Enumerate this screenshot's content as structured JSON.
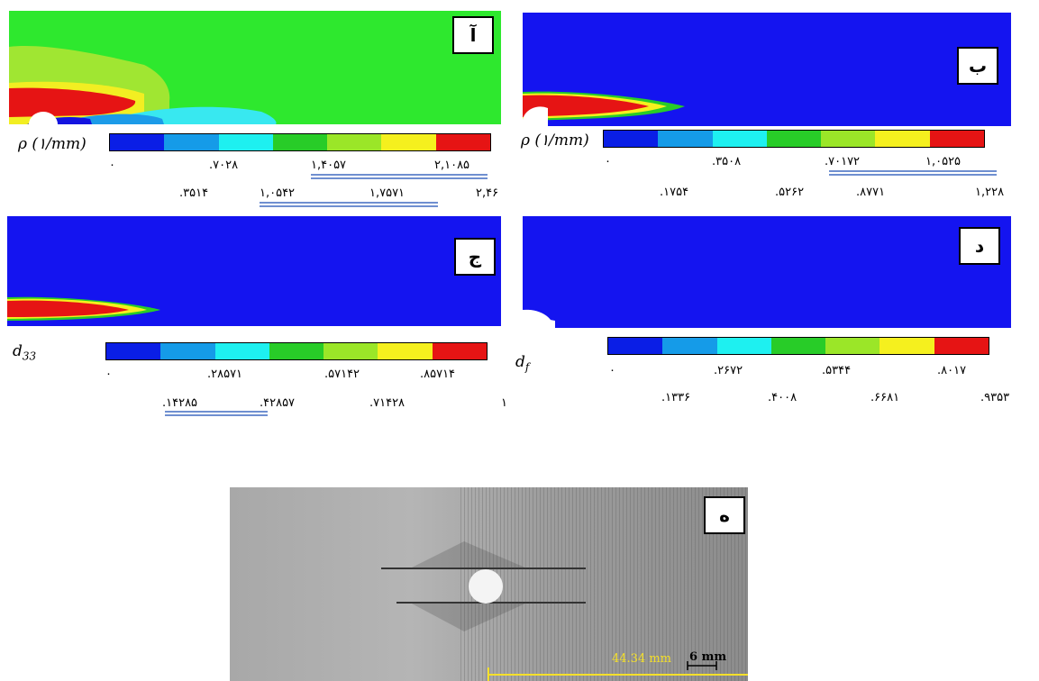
{
  "panels": {
    "a": {
      "tag": "آ",
      "quantity": "ρ (۱/mm)",
      "ticks_row1": [
        "۰",
        ".۷۰۲۸",
        "۱,۴۰۵۷",
        "۲,۱۰۸۵"
      ],
      "ticks_row2": [
        ".۳۵۱۴",
        "۱,۰۵۴۲",
        "۱,۷۵۷۱",
        "۲,۴۶"
      ]
    },
    "b": {
      "tag": "ب",
      "quantity": "ρ (۱/mm)",
      "ticks_row1": [
        "۰",
        ".۳۵۰۸",
        ".۷۰۱۷۲",
        "۱,۰۵۲۵"
      ],
      "ticks_row2": [
        ".۱۷۵۴",
        ".۵۲۶۲",
        ".۸۷۷۱",
        "۱,۲۲۸"
      ]
    },
    "c": {
      "tag": "ج",
      "quantity": "d33",
      "ticks_row1": [
        "۰",
        ".۲۸۵۷۱",
        ".۵۷۱۴۲",
        ".۸۵۷۱۴"
      ],
      "ticks_row2": [
        ".۱۴۲۸۵",
        ".۴۲۸۵۷",
        ".۷۱۴۲۸",
        "۱"
      ]
    },
    "d": {
      "tag": "د",
      "quantity": "df",
      "ticks_row1": [
        "۰",
        ".۲۶۷۲",
        ".۵۳۴۴",
        ".۸۰۱۷"
      ],
      "ticks_row2": [
        ".۱۳۳۶",
        ".۴۰۰۸",
        ".۶۶۸۱",
        ".۹۳۵۳"
      ]
    },
    "e": {
      "tag": "ه",
      "measure": "44.34 mm",
      "scale": "6 mm"
    }
  },
  "colormap": [
    "#0a1ee6",
    "#159be8",
    "#1ef0f0",
    "#28cc28",
    "#9be628",
    "#f5f01e",
    "#e61414"
  ],
  "colors": {
    "background_field": "#1414f0",
    "field_green": "#28e628"
  }
}
